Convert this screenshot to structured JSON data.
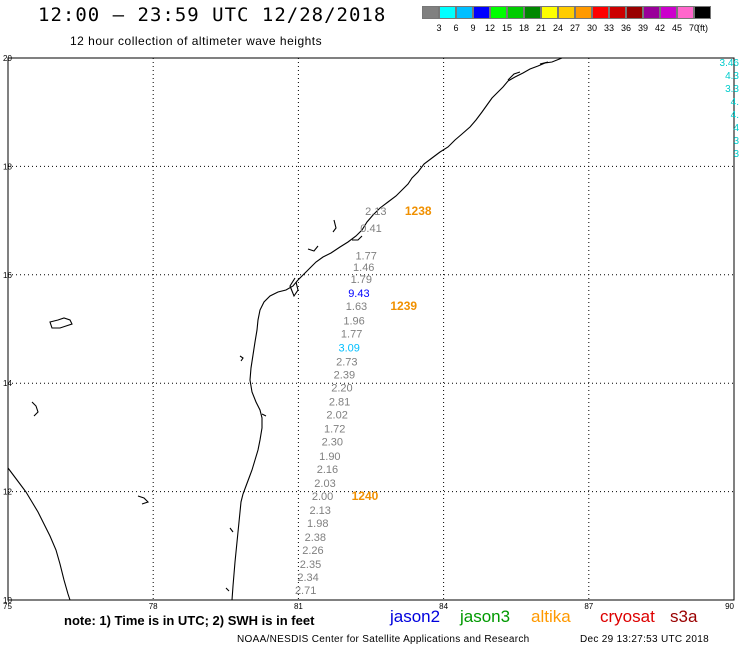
{
  "header": {
    "title": "12:00 – 23:59 UTC 12/28/2018",
    "subtitle": "12 hour collection of altimeter wave heights"
  },
  "colorbar": {
    "colors": [
      "#808080",
      "#00ffff",
      "#00bfff",
      "#0000ff",
      "#00ff00",
      "#00cc00",
      "#008800",
      "#ffff00",
      "#ffcc00",
      "#ff9900",
      "#ff0000",
      "#cc0000",
      "#990000",
      "#990099",
      "#cc00cc",
      "#ff66cc",
      "#000000"
    ],
    "ticks": [
      "3",
      "6",
      "9",
      "12",
      "15",
      "18",
      "21",
      "24",
      "27",
      "30",
      "33",
      "36",
      "39",
      "42",
      "45",
      "70"
    ],
    "unit": "(ft)"
  },
  "map": {
    "lon_range": [
      75,
      90
    ],
    "lat_range": [
      10,
      20
    ],
    "lon_ticks": [
      {
        "value": 75,
        "label": "75"
      },
      {
        "value": 78,
        "label": "78"
      },
      {
        "value": 81,
        "label": "81"
      },
      {
        "value": 84,
        "label": "84"
      },
      {
        "value": 87,
        "label": "87"
      },
      {
        "value": 90,
        "label": "90"
      }
    ],
    "lat_ticks": [
      {
        "value": 20,
        "label": "20"
      },
      {
        "value": 18,
        "label": "18"
      },
      {
        "value": 16,
        "label": "16"
      },
      {
        "value": 14,
        "label": "14"
      },
      {
        "value": 12,
        "label": "12"
      },
      {
        "value": 10,
        "label": "10"
      }
    ],
    "grid": true,
    "coastline_color": "#000000"
  },
  "chart_data": {
    "type": "scatter",
    "title": "12:00 – 23:59 UTC 12/28/2018",
    "subtitle": "12 hour collection of altimeter wave heights",
    "xlim": [
      75,
      90
    ],
    "ylim": [
      10,
      20
    ],
    "points": [
      {
        "lon": 82.6,
        "lat": 17.18,
        "label": "2.13",
        "color": "#808080"
      },
      {
        "lon": 82.5,
        "lat": 16.86,
        "label": "0.41",
        "color": "#808080"
      },
      {
        "lon": 82.4,
        "lat": 16.36,
        "label": "1.77",
        "color": "#808080"
      },
      {
        "lon": 82.35,
        "lat": 16.14,
        "label": "1.46",
        "color": "#808080"
      },
      {
        "lon": 82.3,
        "lat": 15.92,
        "label": "1.79",
        "color": "#808080"
      },
      {
        "lon": 82.25,
        "lat": 15.66,
        "label": "9.43",
        "color": "#0000ff"
      },
      {
        "lon": 82.2,
        "lat": 15.42,
        "label": "1.63",
        "color": "#808080"
      },
      {
        "lon": 82.15,
        "lat": 15.16,
        "label": "1.96",
        "color": "#808080"
      },
      {
        "lon": 82.1,
        "lat": 14.92,
        "label": "1.77",
        "color": "#808080"
      },
      {
        "lon": 82.05,
        "lat": 14.66,
        "label": "3.09",
        "color": "#00bfff"
      },
      {
        "lon": 82.0,
        "lat": 14.4,
        "label": "2.73",
        "color": "#808080"
      },
      {
        "lon": 81.95,
        "lat": 14.16,
        "label": "2.39",
        "color": "#808080"
      },
      {
        "lon": 81.9,
        "lat": 13.92,
        "label": "2.20",
        "color": "#808080"
      },
      {
        "lon": 81.85,
        "lat": 13.66,
        "label": "2.81",
        "color": "#808080"
      },
      {
        "lon": 81.8,
        "lat": 13.42,
        "label": "2.02",
        "color": "#808080"
      },
      {
        "lon": 81.75,
        "lat": 13.16,
        "label": "1.72",
        "color": "#808080"
      },
      {
        "lon": 81.7,
        "lat": 12.92,
        "label": "2.30",
        "color": "#808080"
      },
      {
        "lon": 81.65,
        "lat": 12.66,
        "label": "1.90",
        "color": "#808080"
      },
      {
        "lon": 81.6,
        "lat": 12.42,
        "label": "2.16",
        "color": "#808080"
      },
      {
        "lon": 81.55,
        "lat": 12.16,
        "label": "2.03",
        "color": "#808080"
      },
      {
        "lon": 81.5,
        "lat": 11.92,
        "label": "2.00",
        "color": "#808080"
      },
      {
        "lon": 81.45,
        "lat": 11.66,
        "label": "2.13",
        "color": "#808080"
      },
      {
        "lon": 81.4,
        "lat": 11.42,
        "label": "1.98",
        "color": "#808080"
      },
      {
        "lon": 81.35,
        "lat": 11.16,
        "label": "2.38",
        "color": "#808080"
      },
      {
        "lon": 81.3,
        "lat": 10.92,
        "label": "2.26",
        "color": "#808080"
      },
      {
        "lon": 81.25,
        "lat": 10.66,
        "label": "2.35",
        "color": "#808080"
      },
      {
        "lon": 81.2,
        "lat": 10.42,
        "label": "2.34",
        "color": "#808080"
      },
      {
        "lon": 81.15,
        "lat": 10.18,
        "label": "2.71",
        "color": "#808080"
      }
    ],
    "time_labels": [
      {
        "lon": 83.2,
        "lat": 17.18,
        "label": "1238",
        "color": "#f09000"
      },
      {
        "lon": 82.9,
        "lat": 15.42,
        "label": "1239",
        "color": "#f09000"
      },
      {
        "lon": 82.1,
        "lat": 11.92,
        "label": "1240",
        "color": "#f09000"
      }
    ],
    "edge_values": [
      {
        "label": "3.46",
        "color": "#00cccc"
      },
      {
        "label": "4.3",
        "color": "#00cccc"
      },
      {
        "label": "3.3",
        "color": "#00cccc"
      },
      {
        "label": "4.",
        "color": "#00cccc"
      },
      {
        "label": "4.",
        "color": "#00cccc"
      },
      {
        "label": "4",
        "color": "#00cccc"
      },
      {
        "label": "3",
        "color": "#00cccc"
      },
      {
        "label": "3",
        "color": "#00cccc"
      }
    ]
  },
  "footer": {
    "note": "note: 1) Time is in UTC; 2) SWH is in feet",
    "legend": [
      {
        "name": "jason2",
        "color": "#0000dd"
      },
      {
        "name": "jason3",
        "color": "#009900"
      },
      {
        "name": "altika",
        "color": "#ff9900"
      },
      {
        "name": "cryosat",
        "color": "#dd0000"
      },
      {
        "name": "s3a",
        "color": "#990000"
      }
    ],
    "credit": "NOAA/NESDIS Center for Satellite Applications and Research",
    "timestamp": "Dec 29 13:27:53 UTC 2018"
  }
}
